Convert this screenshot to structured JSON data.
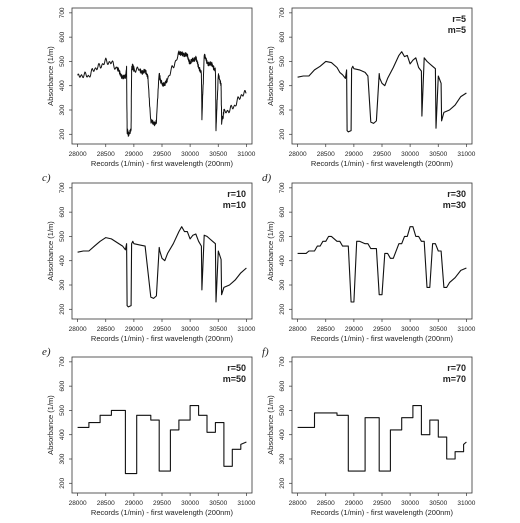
{
  "chart_data": [
    {
      "type": "line",
      "panel_letter": "",
      "annotation": [],
      "xlabel": "Records (1/min) - first wavelength (200nm)",
      "ylabel": "Absorbance (1/m)",
      "xticks": [
        "28000",
        "28500",
        "29000",
        "29500",
        "30000",
        "30500",
        "31000"
      ],
      "yticks": [
        "200",
        "300",
        "400",
        "500",
        "600",
        "700"
      ],
      "xlim": [
        27900,
        31100
      ],
      "ylim": [
        160,
        720
      ],
      "series": [
        {
          "style": "raw-noisy",
          "x": [
            28000,
            28100,
            28200,
            28300,
            28400,
            28500,
            28600,
            28700,
            28750,
            28800,
            28850,
            28870,
            28880,
            28900,
            28950,
            28960,
            28980,
            29000,
            29100,
            29150,
            29200,
            29250,
            29300,
            29350,
            29400,
            29450,
            29460,
            29500,
            29550,
            29600,
            29700,
            29800,
            29850,
            29900,
            29950,
            30000,
            30050,
            30100,
            30150,
            30200,
            30210,
            30250,
            30300,
            30350,
            30400,
            30450,
            30460,
            30500,
            30550,
            30560,
            30600,
            30700,
            30800,
            30900,
            31000
          ],
          "y": [
            435,
            445,
            440,
            470,
            480,
            500,
            495,
            470,
            450,
            440,
            430,
            470,
            210,
            205,
            215,
            470,
            480,
            470,
            465,
            460,
            455,
            440,
            250,
            245,
            255,
            450,
            430,
            410,
            400,
            430,
            480,
            530,
            540,
            520,
            530,
            490,
            505,
            520,
            470,
            460,
            270,
            520,
            500,
            490,
            480,
            470,
            220,
            440,
            410,
            250,
            290,
            300,
            320,
            360,
            370
          ]
        }
      ]
    },
    {
      "type": "line",
      "panel_letter": "",
      "annotation": [
        "r=5",
        "m=5"
      ],
      "xlabel": "Records (1/min) - first wavelength (200nm)",
      "ylabel": "Absorbance (1/m)",
      "xticks": [
        "28000",
        "28500",
        "29000",
        "29500",
        "30000",
        "30500",
        "31000"
      ],
      "yticks": [
        "200",
        "300",
        "400",
        "500",
        "600",
        "700"
      ],
      "xlim": [
        27900,
        31100
      ],
      "ylim": [
        160,
        720
      ],
      "series": [
        {
          "style": "smoothed",
          "x": [
            28000,
            28100,
            28200,
            28300,
            28400,
            28500,
            28600,
            28700,
            28750,
            28800,
            28850,
            28870,
            28880,
            28900,
            28950,
            28960,
            28980,
            29000,
            29100,
            29150,
            29200,
            29250,
            29300,
            29350,
            29400,
            29450,
            29460,
            29500,
            29550,
            29600,
            29700,
            29800,
            29850,
            29900,
            29950,
            30000,
            30050,
            30100,
            30150,
            30200,
            30210,
            30250,
            30300,
            30350,
            30400,
            30450,
            30460,
            30500,
            30550,
            30560,
            30600,
            30700,
            30800,
            30900,
            31000
          ],
          "y": [
            435,
            440,
            440,
            465,
            480,
            500,
            495,
            475,
            455,
            445,
            430,
            465,
            215,
            210,
            215,
            470,
            480,
            470,
            465,
            460,
            455,
            440,
            250,
            245,
            255,
            450,
            430,
            410,
            400,
            430,
            475,
            525,
            540,
            520,
            525,
            490,
            505,
            515,
            475,
            460,
            275,
            515,
            500,
            490,
            480,
            470,
            225,
            440,
            410,
            255,
            290,
            300,
            320,
            355,
            370
          ]
        }
      ]
    },
    {
      "type": "line",
      "panel_letter": "c)",
      "annotation": [
        "r=10",
        "m=10"
      ],
      "xlabel": "Records (1/min) - first wavelength (200nm)",
      "ylabel": "Absorbance (1/m)",
      "xticks": [
        "28000",
        "28500",
        "29000",
        "29500",
        "30000",
        "30500",
        "31000"
      ],
      "yticks": [
        "200",
        "300",
        "400",
        "500",
        "600",
        "700"
      ],
      "xlim": [
        27900,
        31100
      ],
      "ylim": [
        160,
        720
      ],
      "series": [
        {
          "style": "smoothed",
          "x": [
            28000,
            28100,
            28200,
            28300,
            28400,
            28500,
            28600,
            28700,
            28800,
            28850,
            28870,
            28880,
            28900,
            28950,
            28960,
            28980,
            29000,
            29100,
            29200,
            29300,
            29350,
            29400,
            29450,
            29460,
            29500,
            29550,
            29600,
            29700,
            29800,
            29850,
            29900,
            29950,
            30000,
            30050,
            30100,
            30150,
            30200,
            30210,
            30250,
            30300,
            30350,
            30400,
            30450,
            30460,
            30500,
            30550,
            30560,
            30600,
            30700,
            30800,
            30900,
            31000
          ],
          "y": [
            435,
            440,
            440,
            460,
            480,
            495,
            490,
            475,
            460,
            445,
            470,
            215,
            210,
            215,
            470,
            480,
            470,
            465,
            460,
            250,
            245,
            255,
            455,
            440,
            410,
            400,
            430,
            470,
            520,
            540,
            520,
            520,
            490,
            505,
            510,
            480,
            460,
            280,
            505,
            500,
            490,
            480,
            470,
            230,
            440,
            405,
            260,
            290,
            300,
            320,
            350,
            370
          ]
        }
      ]
    },
    {
      "type": "line",
      "panel_letter": "d)",
      "annotation": [
        "r=30",
        "m=30"
      ],
      "xlabel": "Records (1/min) - first wavelength (200nm)",
      "ylabel": "Absorbance (1/m)",
      "xticks": [
        "28000",
        "28500",
        "29000",
        "29500",
        "30000",
        "30500",
        "31000"
      ],
      "yticks": [
        "200",
        "300",
        "400",
        "500",
        "600",
        "700"
      ],
      "xlim": [
        27900,
        31100
      ],
      "ylim": [
        160,
        720
      ],
      "series": [
        {
          "style": "steps",
          "x": [
            28000,
            28150,
            28200,
            28300,
            28350,
            28400,
            28450,
            28500,
            28550,
            28600,
            28700,
            28750,
            28800,
            28900,
            28950,
            29000,
            29050,
            29100,
            29200,
            29250,
            29300,
            29400,
            29450,
            29500,
            29550,
            29600,
            29650,
            29700,
            29800,
            29850,
            29900,
            29950,
            30000,
            30050,
            30100,
            30150,
            30200,
            30250,
            30300,
            30350,
            30400,
            30450,
            30500,
            30550,
            30600,
            30650,
            30700,
            30800,
            30900,
            31000
          ],
          "y": [
            430,
            430,
            440,
            440,
            460,
            460,
            480,
            480,
            500,
            500,
            480,
            480,
            460,
            460,
            230,
            230,
            480,
            480,
            470,
            470,
            450,
            450,
            260,
            260,
            430,
            430,
            410,
            410,
            470,
            470,
            500,
            500,
            540,
            540,
            500,
            500,
            480,
            480,
            290,
            290,
            470,
            470,
            440,
            440,
            290,
            290,
            310,
            330,
            360,
            370
          ]
        }
      ]
    },
    {
      "type": "line",
      "panel_letter": "e)",
      "annotation": [
        "r=50",
        "m=50"
      ],
      "xlabel": "Records (1/min) - first wavelength (200nm)",
      "ylabel": "Absorbance (1/m)",
      "xticks": [
        "28000",
        "28500",
        "29000",
        "29500",
        "30000",
        "30500",
        "31000"
      ],
      "yticks": [
        "200",
        "300",
        "400",
        "500",
        "600",
        "700"
      ],
      "xlim": [
        27900,
        31100
      ],
      "ylim": [
        160,
        720
      ],
      "series": [
        {
          "style": "steps",
          "x": [
            28000,
            28200,
            28200,
            28400,
            28400,
            28600,
            28600,
            28850,
            28850,
            29050,
            29050,
            29300,
            29300,
            29450,
            29450,
            29650,
            29650,
            29800,
            29800,
            30000,
            30000,
            30150,
            30150,
            30300,
            30300,
            30450,
            30450,
            30600,
            30600,
            30750,
            30750,
            30900,
            30900,
            31000
          ],
          "y": [
            430,
            430,
            450,
            450,
            480,
            480,
            500,
            500,
            240,
            240,
            480,
            480,
            460,
            460,
            250,
            250,
            420,
            420,
            460,
            460,
            520,
            520,
            480,
            480,
            410,
            410,
            450,
            450,
            270,
            270,
            340,
            340,
            360,
            370
          ]
        }
      ]
    },
    {
      "type": "line",
      "panel_letter": "f)",
      "annotation": [
        "r=70",
        "m=70"
      ],
      "xlabel": "Records (1/min) - first wavelength (200nm)",
      "ylabel": "Absorbance (1/m)",
      "xticks": [
        "28000",
        "28500",
        "29000",
        "29500",
        "30000",
        "30500",
        "31000"
      ],
      "yticks": [
        "200",
        "300",
        "400",
        "500",
        "600",
        "700"
      ],
      "xlim": [
        27900,
        31100
      ],
      "ylim": [
        160,
        720
      ],
      "series": [
        {
          "style": "steps",
          "x": [
            28000,
            28300,
            28300,
            28700,
            28700,
            28900,
            28900,
            29200,
            29200,
            29450,
            29450,
            29650,
            29650,
            29850,
            29850,
            30050,
            30050,
            30200,
            30200,
            30350,
            30350,
            30500,
            30500,
            30650,
            30650,
            30800,
            30800,
            30950,
            30950,
            31000
          ],
          "y": [
            430,
            430,
            490,
            490,
            480,
            480,
            250,
            250,
            470,
            470,
            250,
            250,
            420,
            420,
            470,
            470,
            520,
            520,
            400,
            400,
            460,
            460,
            390,
            390,
            300,
            300,
            330,
            330,
            360,
            370
          ]
        }
      ]
    }
  ]
}
